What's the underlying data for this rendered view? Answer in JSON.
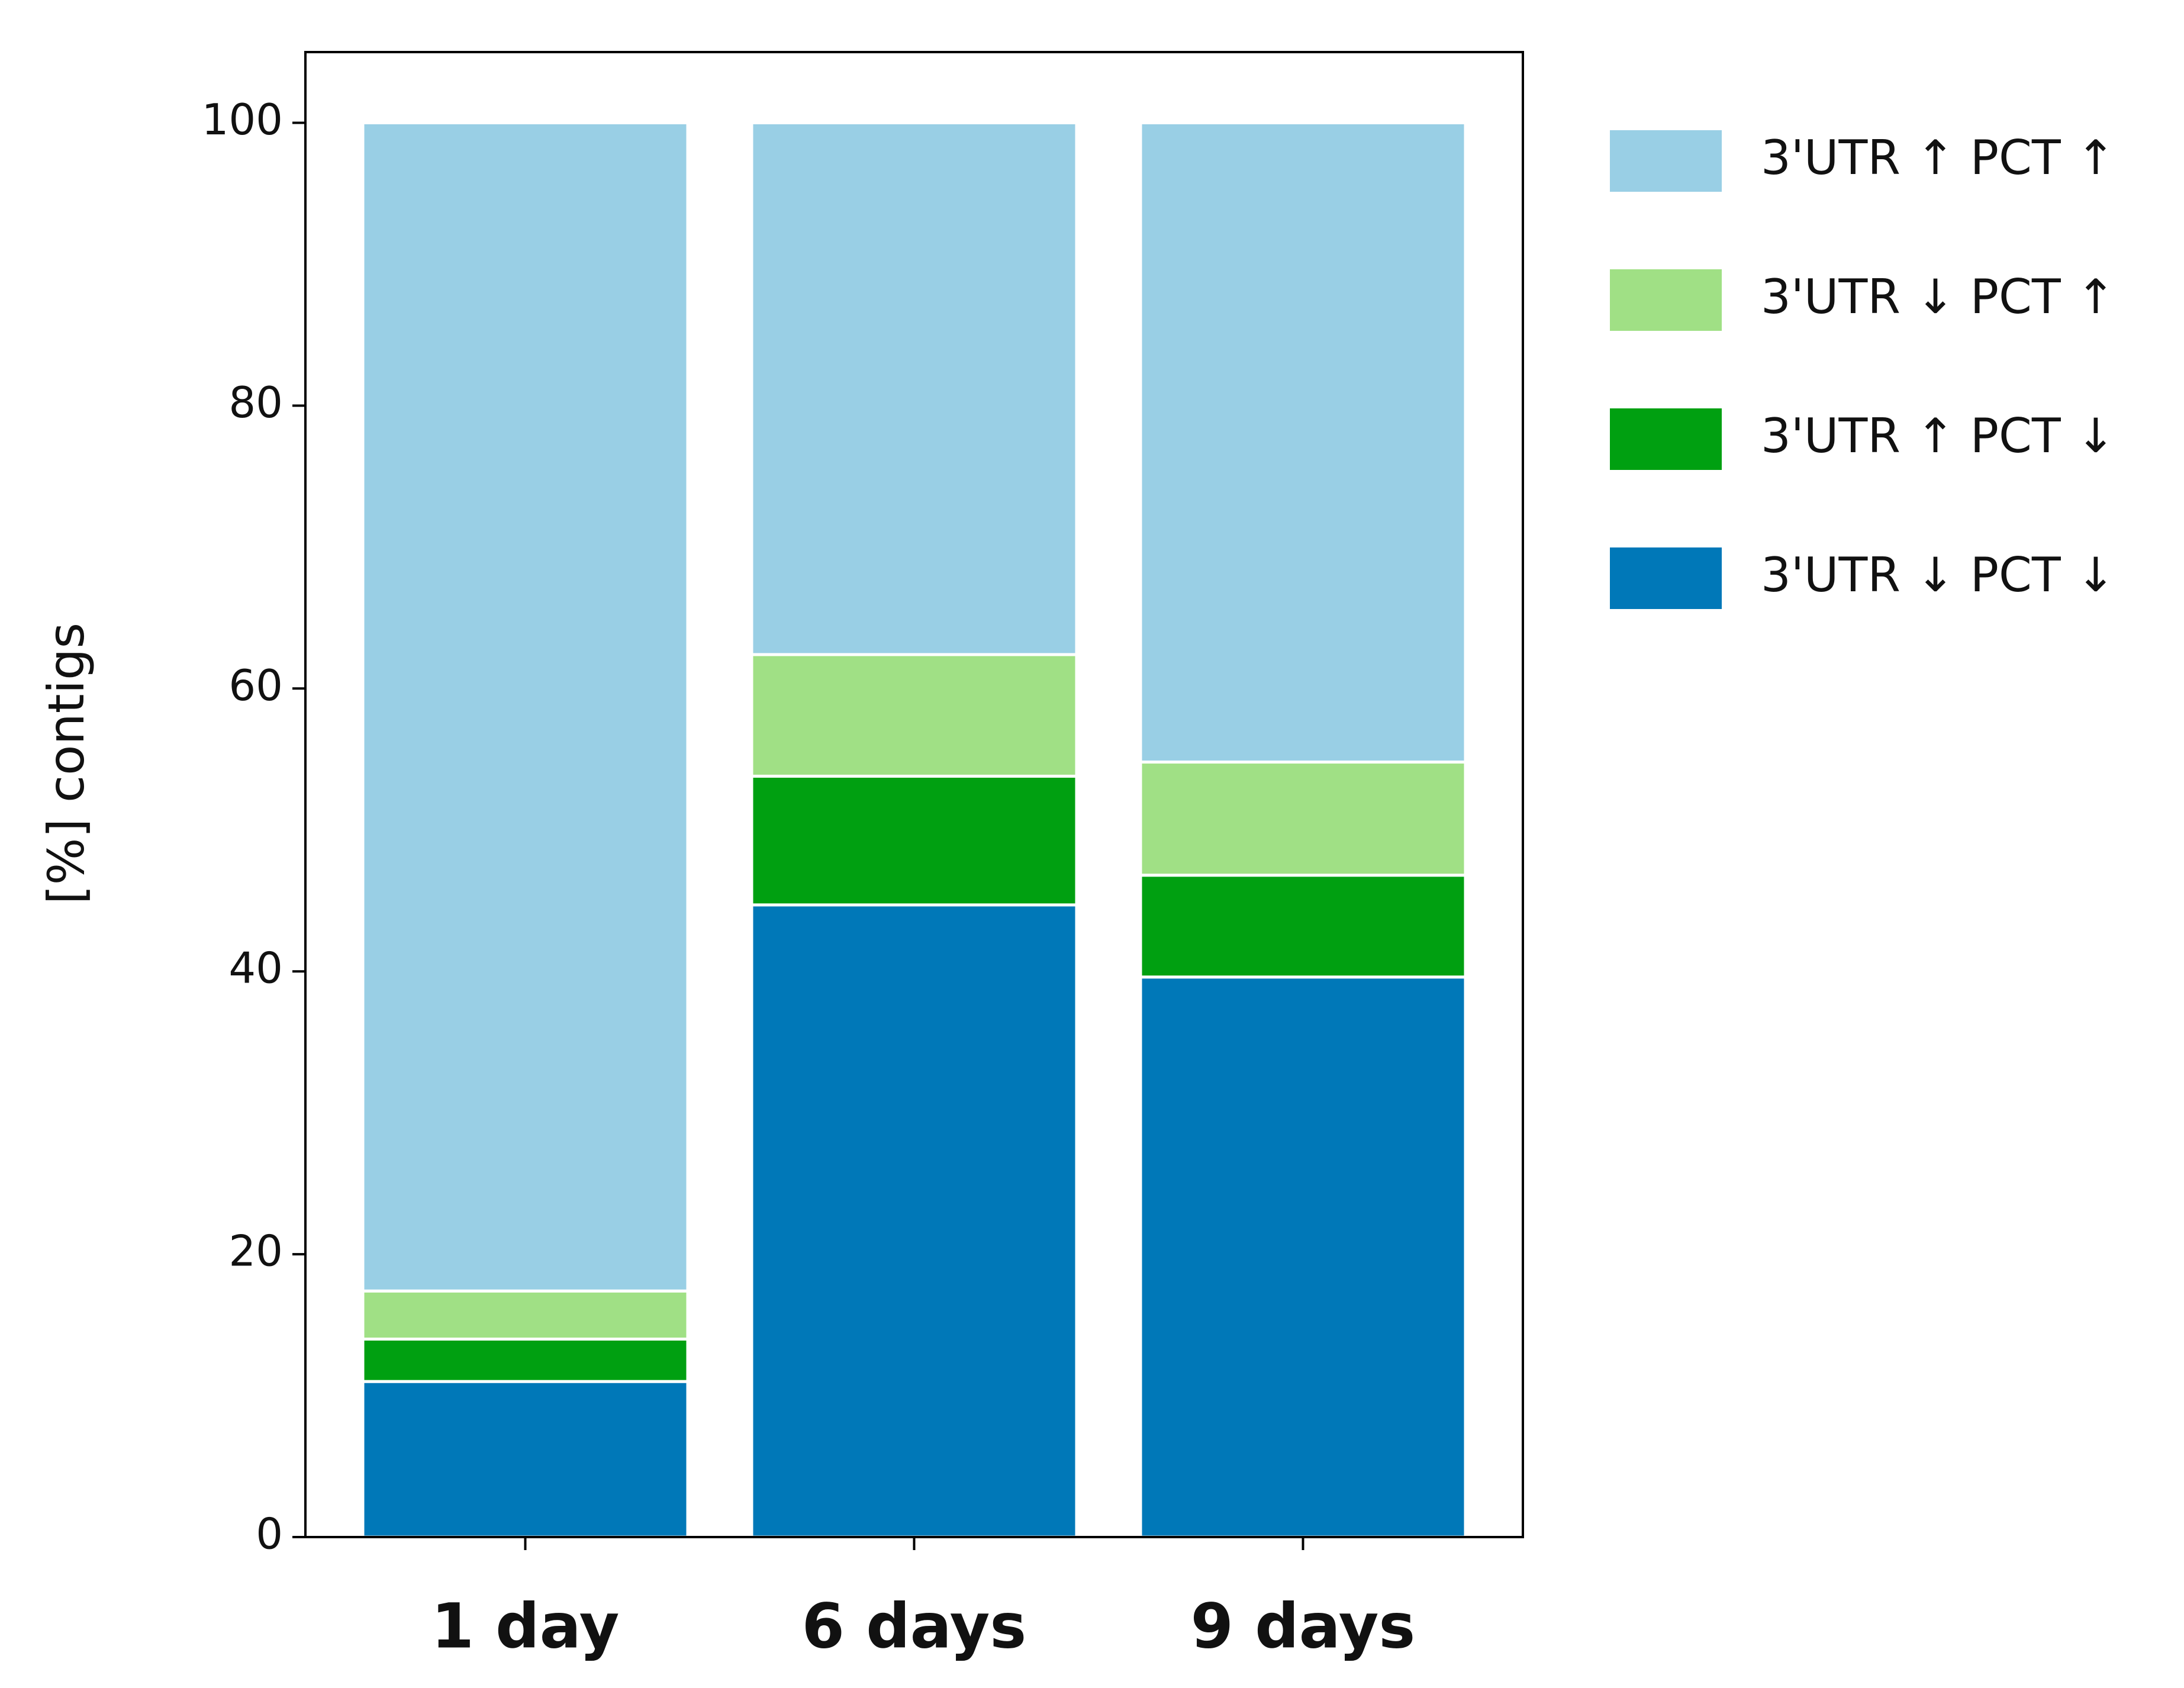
{
  "chart_data": {
    "type": "stacked-bar",
    "ylabel": "[%] contigs",
    "categories": [
      "1 day",
      "6 days",
      "9 days"
    ],
    "series": [
      {
        "name": "3'UTR ↓ PCT ↓",
        "color": "#0078b8",
        "values": [
          11,
          44.7,
          39.6
        ]
      },
      {
        "name": "3'UTR ↑ PCT ↓",
        "color": "#00a011",
        "values": [
          3,
          9.1,
          7.2
        ]
      },
      {
        "name": "3'UTR ↓ PCT ↑",
        "color": "#a0e085",
        "values": [
          3.4,
          8.6,
          8.0
        ]
      },
      {
        "name": "3'UTR ↑ PCT ↑",
        "color": "#99cfe5",
        "values": [
          82.6,
          37.6,
          45.2
        ]
      }
    ],
    "ylim": [
      0,
      105
    ],
    "yticks": [
      0,
      20,
      40,
      60,
      80,
      100
    ],
    "legend": "outside-right"
  }
}
